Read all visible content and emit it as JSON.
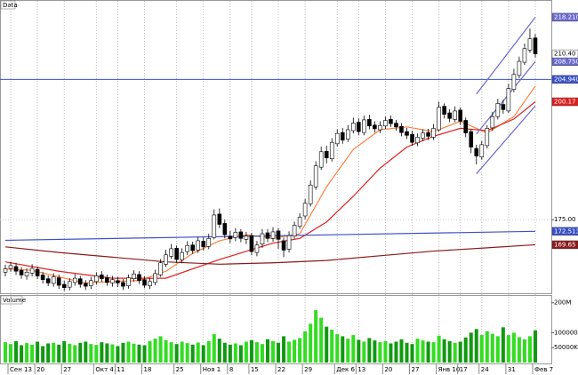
{
  "chart_data": {
    "type": "candlestick",
    "title": "Data",
    "categories": [
      null,
      "Сен 13",
      null,
      null,
      null,
      null,
      "20",
      null,
      null,
      null,
      null,
      "27",
      null,
      null,
      null,
      null,
      null,
      "Окт 4",
      null,
      null,
      null,
      "11",
      null,
      null,
      null,
      null,
      "18",
      null,
      null,
      null,
      null,
      null,
      "25",
      null,
      null,
      null,
      null,
      "Ноя 1",
      null,
      null,
      null,
      null,
      "8",
      null,
      null,
      null,
      "15",
      null,
      null,
      null,
      null,
      "22",
      null,
      null,
      null,
      null,
      "29",
      null,
      null,
      null,
      null,
      null,
      "Дек 6",
      null,
      null,
      null,
      "13",
      null,
      null,
      null,
      null,
      "20",
      null,
      null,
      null,
      null,
      "27",
      null,
      null,
      null,
      null,
      "Янв 10",
      null,
      null,
      null,
      "17",
      null,
      null,
      null,
      "24",
      null,
      null,
      null,
      null,
      "31",
      null,
      null,
      null,
      null,
      "Фев 7"
    ],
    "open": [
      163.8,
      164.6,
      165.0,
      164.2,
      163.0,
      163.6,
      164.4,
      163.2,
      162.4,
      161.4,
      162.6,
      161.2,
      160.6,
      161.6,
      162.4,
      161.4,
      160.9,
      161.8,
      163.2,
      162.6,
      161.5,
      162.0,
      161.6,
      160.9,
      162.4,
      163.3,
      162.2,
      160.9,
      161.6,
      163.2,
      165.5,
      167.2,
      168.9,
      166.4,
      168.2,
      169.6,
      168.5,
      170.4,
      169.3,
      171.2,
      176.2,
      174.2,
      171.5,
      171.2,
      172.4,
      170.8,
      171.6,
      168.0,
      169.8,
      172.2,
      171.0,
      172.6,
      170.5,
      168.7,
      171.5,
      173.6,
      175.8,
      178.4,
      182.0,
      186.2,
      189.6,
      188.0,
      191.2,
      193.6,
      192.2,
      194.0,
      195.8,
      193.6,
      196.4,
      195.2,
      194.2,
      195.0,
      196.4,
      195.6,
      194.9,
      193.8,
      193.2,
      191.4,
      192.4,
      193.6,
      192.6,
      194.2,
      199.2,
      197.8,
      196.4,
      198.4,
      196.2,
      193.8,
      190.2,
      188.4,
      190.8,
      194.6,
      197.0,
      199.6,
      198.2,
      202.8,
      205.8,
      208.6,
      211.2,
      213.8
    ],
    "high": [
      165.4,
      166.0,
      165.8,
      164.9,
      164.6,
      165.5,
      165.0,
      163.9,
      163.1,
      163.6,
      163.3,
      162.0,
      162.5,
      163.4,
      163.0,
      162.1,
      162.8,
      163.8,
      164.0,
      163.3,
      163.0,
      162.8,
      162.3,
      163.3,
      164.2,
      164.0,
      162.9,
      162.6,
      164.3,
      166.6,
      168.6,
      169.8,
      169.5,
      168.9,
      170.4,
      170.3,
      171.3,
      171.2,
      172.0,
      177.2,
      177.4,
      175.0,
      172.6,
      173.2,
      173.0,
      172.4,
      172.2,
      170.5,
      173.0,
      173.0,
      173.4,
      173.2,
      171.2,
      172.5,
      174.6,
      176.4,
      179.4,
      183.4,
      187.5,
      190.6,
      190.8,
      192.4,
      194.3,
      194.6,
      195.2,
      196.8,
      196.6,
      197.2,
      197.4,
      196.0,
      196.0,
      197.0,
      197.2,
      196.3,
      195.6,
      194.6,
      194.0,
      193.4,
      194.3,
      194.4,
      195.4,
      200.2,
      199.8,
      198.6,
      199.2,
      199.0,
      196.8,
      194.2,
      191.0,
      191.8,
      195.2,
      198.0,
      200.8,
      200.6,
      204.0,
      207.2,
      209.8,
      212.6,
      215.8,
      214.6
    ],
    "low": [
      162.9,
      163.9,
      163.2,
      162.4,
      162.2,
      162.9,
      162.3,
      161.4,
      160.8,
      160.7,
      160.2,
      159.8,
      159.9,
      160.9,
      160.5,
      160.0,
      160.2,
      161.1,
      161.7,
      160.9,
      160.7,
      160.6,
      160.0,
      160.3,
      161.8,
      161.3,
      160.4,
      160.2,
      161.0,
      162.8,
      164.9,
      166.6,
      165.8,
      165.7,
      167.5,
      167.7,
      167.9,
      168.4,
      168.7,
      170.8,
      173.2,
      171.0,
      170.0,
      170.4,
      170.2,
      169.8,
      167.4,
      167.2,
      169.0,
      170.2,
      170.3,
      168.8,
      167.0,
      168.0,
      170.9,
      173.0,
      175.1,
      177.8,
      181.4,
      185.6,
      187.0,
      187.4,
      190.6,
      191.2,
      191.6,
      193.4,
      193.0,
      193.0,
      194.3,
      193.6,
      193.5,
      194.4,
      194.8,
      194.0,
      192.8,
      192.2,
      190.8,
      190.7,
      191.8,
      192.0,
      192.0,
      193.8,
      196.6,
      195.8,
      195.8,
      195.2,
      192.6,
      189.2,
      186.8,
      187.8,
      190.2,
      194.0,
      196.4,
      197.6,
      197.8,
      202.2,
      205.2,
      208.0,
      210.6,
      209.6
    ],
    "close": [
      164.5,
      165.2,
      164.0,
      163.2,
      163.8,
      164.6,
      163.0,
      162.2,
      161.5,
      162.8,
      161.0,
      160.5,
      161.8,
      162.5,
      161.2,
      160.8,
      162.0,
      163.0,
      162.4,
      161.6,
      162.2,
      161.5,
      160.8,
      162.6,
      163.4,
      162.0,
      161.0,
      161.8,
      163.5,
      165.8,
      167.5,
      168.8,
      166.5,
      168.0,
      169.5,
      168.4,
      170.5,
      169.2,
      171.0,
      176.0,
      174.0,
      171.8,
      170.9,
      172.3,
      171.0,
      171.5,
      168.2,
      169.6,
      172.0,
      171.0,
      172.4,
      170.8,
      168.5,
      171.6,
      173.8,
      175.5,
      178.5,
      182.4,
      186.5,
      189.5,
      188.2,
      191.5,
      193.4,
      192.0,
      194.2,
      195.6,
      193.8,
      196.3,
      195.0,
      194.4,
      195.1,
      196.2,
      195.5,
      194.8,
      193.6,
      193.0,
      191.5,
      192.6,
      193.5,
      192.8,
      194.5,
      199.0,
      197.5,
      196.6,
      198.2,
      196.0,
      193.5,
      190.5,
      188.6,
      191.0,
      194.5,
      197.0,
      199.8,
      198.5,
      203.0,
      206.0,
      208.8,
      211.5,
      213.6,
      210.4
    ],
    "close_label": "210.40",
    "up_color": "#ffffff",
    "down_color": "#000000",
    "ylim": [
      159.3,
      221.7
    ],
    "yticks": [
      {
        "value": 175,
        "label": "175.00"
      }
    ],
    "hlines": [
      {
        "value": 204.94,
        "label": "204.9400",
        "color": "#3a4fc8"
      }
    ],
    "overlays": [
      {
        "color": "#ff8040",
        "x": [
          0,
          5,
          10,
          15,
          20,
          25,
          30,
          35,
          40,
          45,
          50,
          55,
          60,
          65,
          70,
          75,
          80,
          85,
          90,
          95,
          99
        ],
        "values": [
          164.5,
          164.2,
          162.8,
          161.5,
          161.8,
          162.0,
          164.0,
          167.8,
          170.5,
          171.8,
          171.0,
          172.0,
          182.0,
          190.0,
          194.2,
          194.8,
          193.8,
          196.0,
          193.5,
          197.0,
          203.5
        ]
      },
      {
        "color": "#e02020",
        "x": [
          0,
          10,
          20,
          30,
          40,
          50,
          55,
          60,
          65,
          70,
          75,
          80,
          85,
          90,
          95,
          99
        ],
        "values": [
          166.0,
          164.0,
          162.5,
          162.5,
          166.5,
          170.0,
          171.0,
          174.5,
          180.0,
          186.0,
          190.5,
          192.8,
          194.5,
          194.0,
          196.5,
          200.17
        ],
        "label": "200.17"
      },
      {
        "color": "#8b1a1a",
        "x": [
          0,
          10,
          20,
          30,
          40,
          50,
          60,
          70,
          80,
          90,
          99
        ],
        "values": [
          169.2,
          168.0,
          167.0,
          166.0,
          165.5,
          165.8,
          166.3,
          167.3,
          168.3,
          169.0,
          169.65
        ],
        "label": "169.65"
      },
      {
        "color": "#3a4fc8",
        "x": [
          0,
          99
        ],
        "values": [
          170.6,
          172.513
        ],
        "label": "172.5130"
      },
      {
        "color": "#6a6ad0",
        "x": [
          88,
          99
        ],
        "values": [
          201.8,
          218.21
        ],
        "label": "218.2100"
      },
      {
        "color": "#6a6ad0",
        "x": [
          88,
          99
        ],
        "values": [
          193.3,
          208.75
        ],
        "label": "208.7500"
      },
      {
        "color": "#6a6ad0",
        "x": [
          88,
          99
        ],
        "values": [
          184.8,
          199.29
        ]
      }
    ],
    "volume": {
      "title": "Volume",
      "values": [
        68,
        62,
        72,
        58,
        65,
        60,
        70,
        55,
        64,
        66,
        60,
        72,
        63,
        58,
        66,
        70,
        62,
        59,
        68,
        64,
        61,
        55,
        66,
        70,
        63,
        60,
        58,
        72,
        80,
        88,
        75,
        68,
        62,
        70,
        65,
        60,
        67,
        58,
        72,
        95,
        80,
        66,
        60,
        64,
        58,
        70,
        75,
        68,
        62,
        78,
        72,
        66,
        88,
        70,
        76,
        82,
        105,
        130,
        175,
        150,
        120,
        110,
        95,
        88,
        80,
        92,
        76,
        70,
        82,
        74,
        68,
        72,
        64,
        70,
        78,
        66,
        62,
        80,
        74,
        70,
        68,
        90,
        78,
        72,
        66,
        70,
        84,
        100,
        112,
        92,
        105,
        96,
        88,
        118,
        92,
        100,
        85,
        78,
        88,
        108
      ],
      "ylim": [
        0,
        220
      ],
      "yticks": [
        {
          "value": 200,
          "label": "200M"
        },
        {
          "value": 100,
          "label": "100000K"
        },
        {
          "value": 50,
          "label": "50000K"
        }
      ],
      "up_color": "#33dd22",
      "down_color": "#119911"
    }
  }
}
